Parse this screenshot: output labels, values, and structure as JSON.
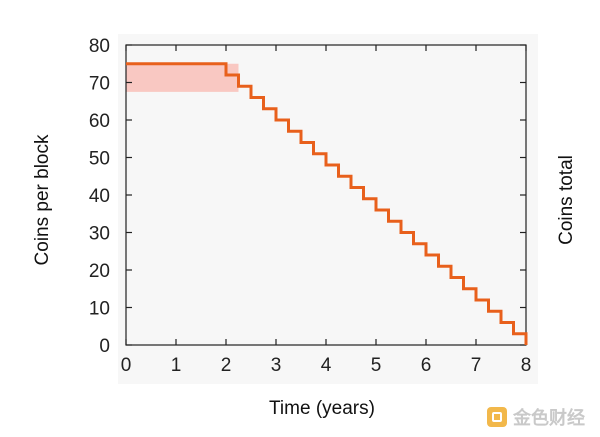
{
  "chart_data": {
    "type": "line",
    "title": "",
    "xlabel": "Time (years)",
    "ylabel": "Coins per block",
    "y2label": "Coins total",
    "xlim": [
      0,
      8
    ],
    "ylim": [
      0,
      80
    ],
    "xticks": [
      0,
      1,
      2,
      3,
      4,
      5,
      6,
      7,
      8
    ],
    "yticks": [
      0,
      10,
      20,
      30,
      40,
      50,
      60,
      70,
      80
    ],
    "grid": false,
    "series": [
      {
        "name": "Coins per block",
        "style": "step",
        "color": "#e8601c",
        "x": [
          0,
          2,
          2.25,
          2.5,
          2.75,
          3,
          3.25,
          3.5,
          3.75,
          4,
          4.25,
          4.5,
          4.75,
          5,
          5.25,
          5.5,
          5.75,
          6,
          6.25,
          6.5,
          6.75,
          7,
          7.25,
          7.5,
          7.75,
          8
        ],
        "y": [
          75,
          72,
          69,
          66,
          63,
          60,
          57,
          54,
          51,
          48,
          45,
          42,
          39,
          36,
          33,
          30,
          27,
          24,
          21,
          18,
          15,
          12,
          9,
          6,
          3,
          0
        ]
      }
    ],
    "shaded_region": {
      "name": "shaded-area",
      "color": "#f9c8c2",
      "x": [
        0,
        2.25
      ],
      "y_low": 67.5,
      "y_high": 75
    }
  },
  "watermark": {
    "text": "金色财经"
  }
}
